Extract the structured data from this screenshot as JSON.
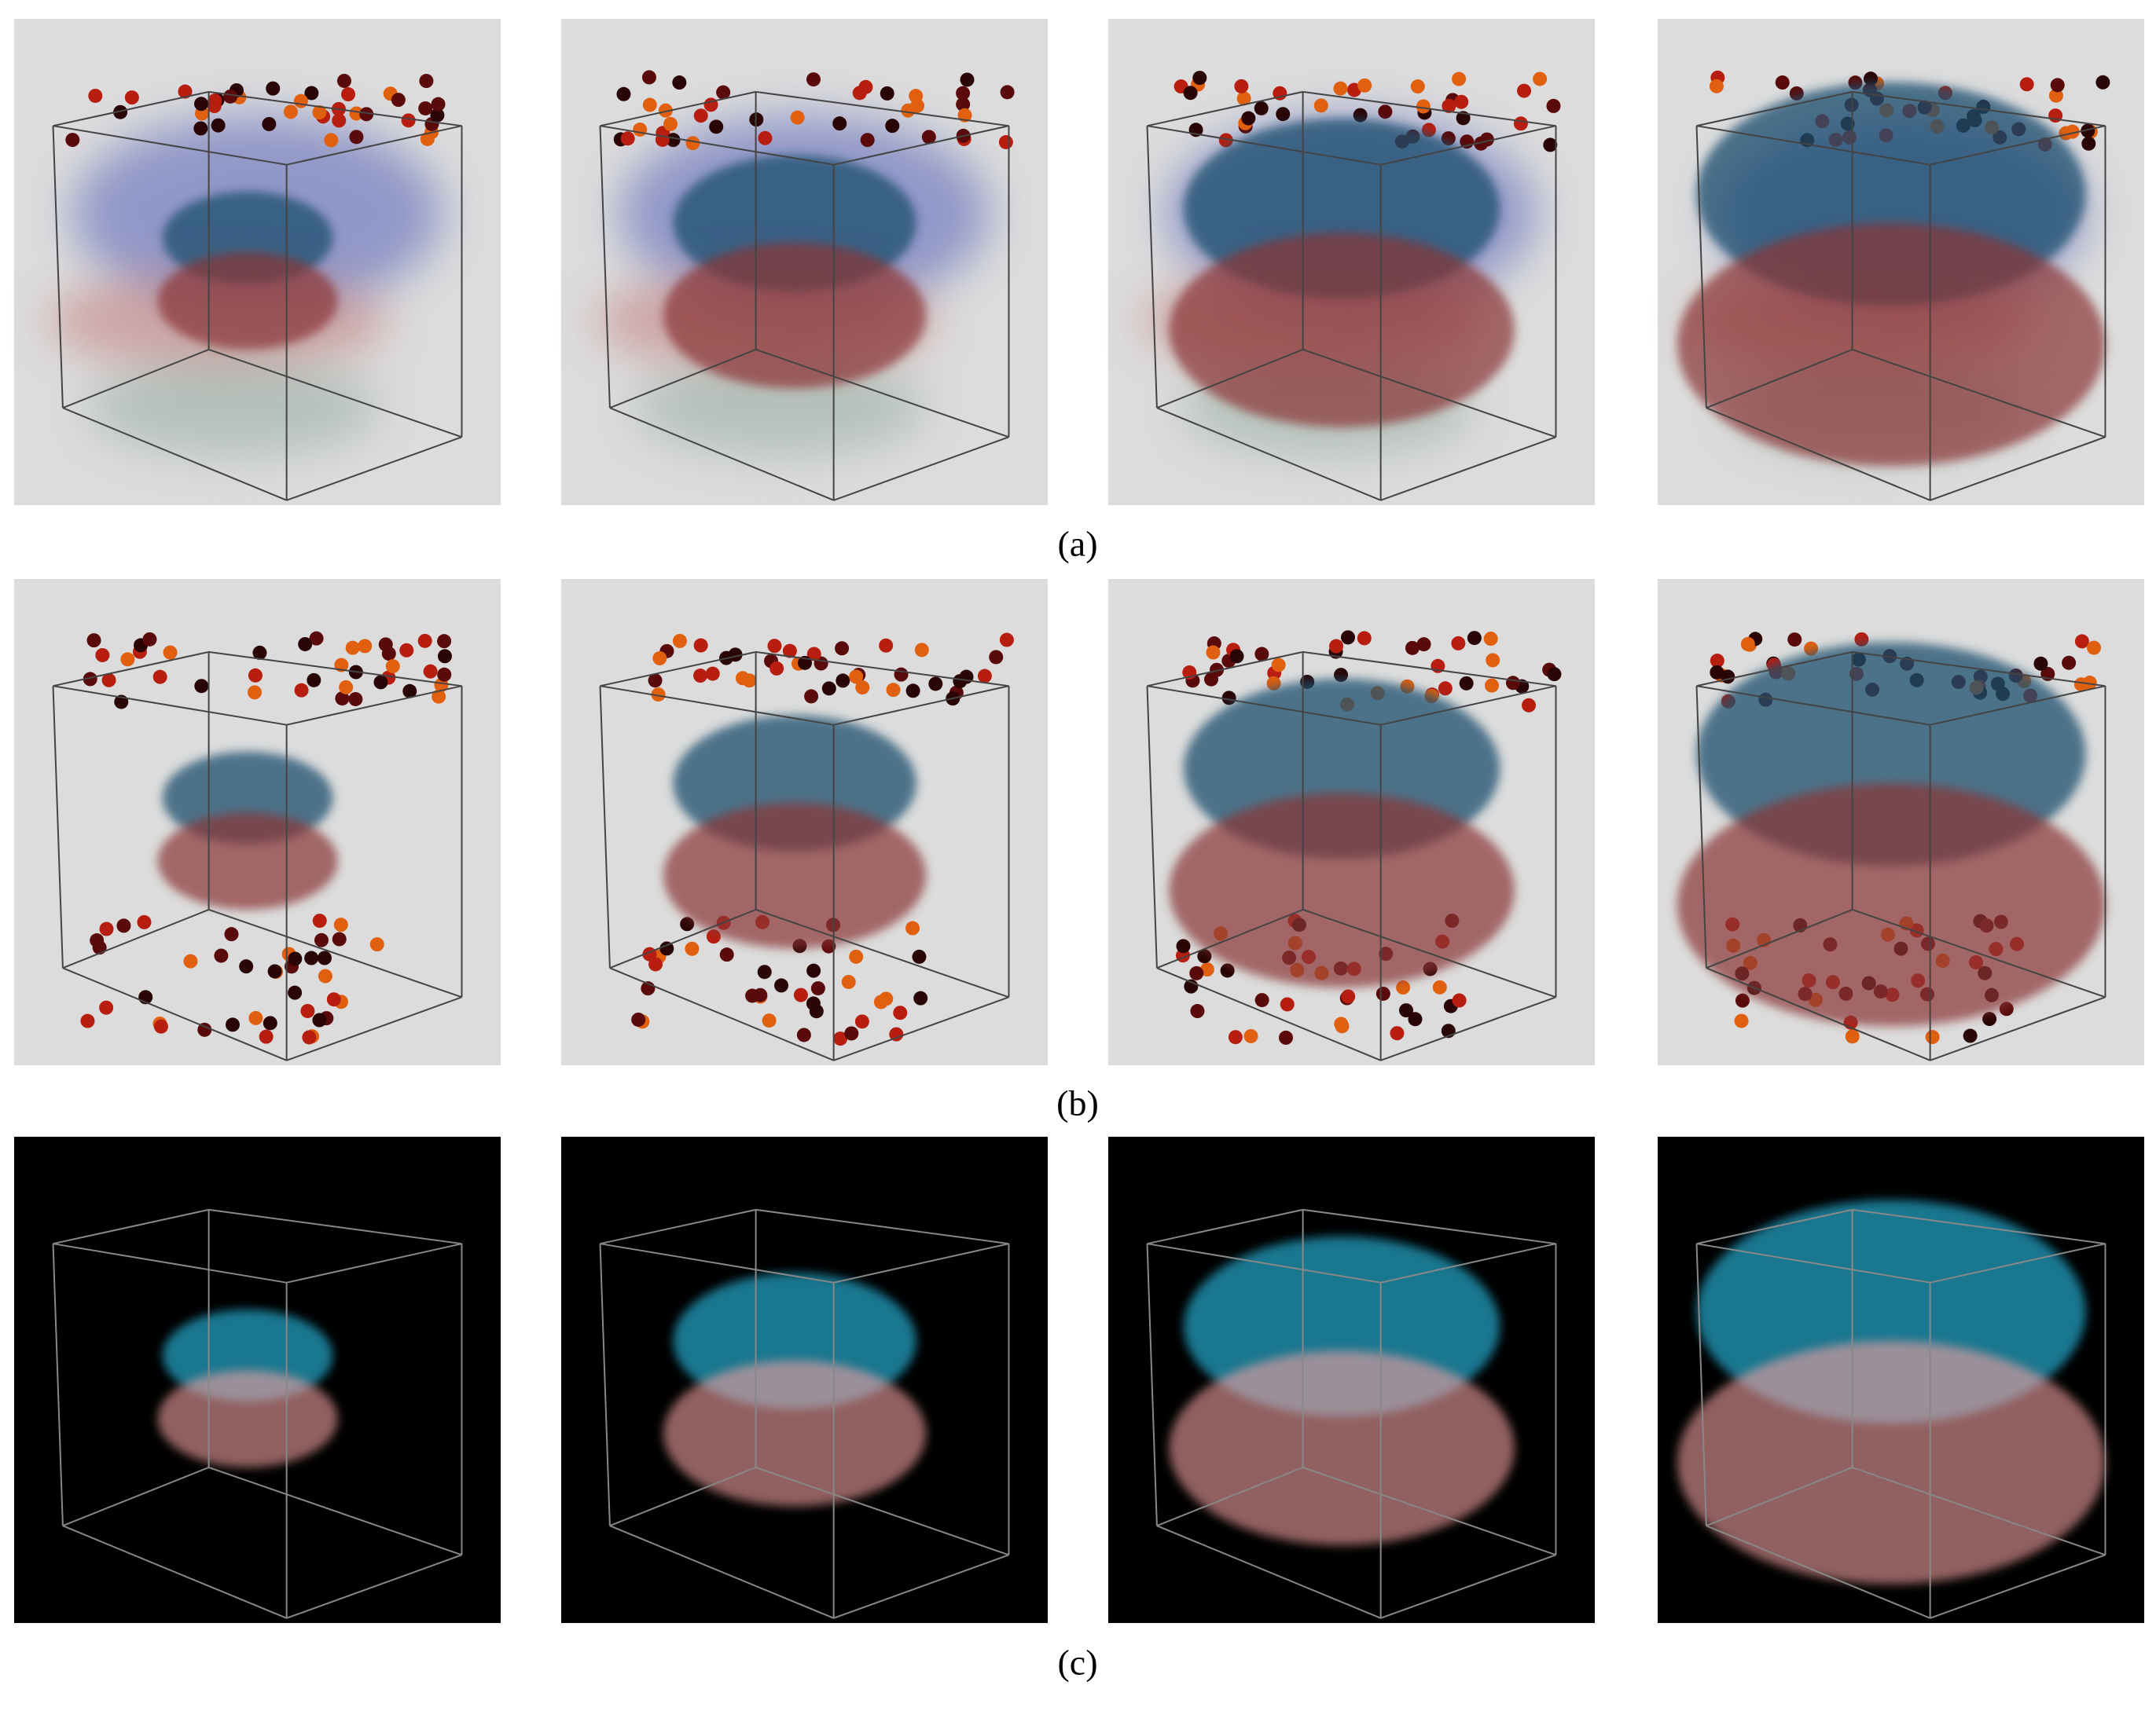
{
  "figure": {
    "subfigure_labels": [
      "(a)",
      "(b)",
      "(c)"
    ]
  }
}
